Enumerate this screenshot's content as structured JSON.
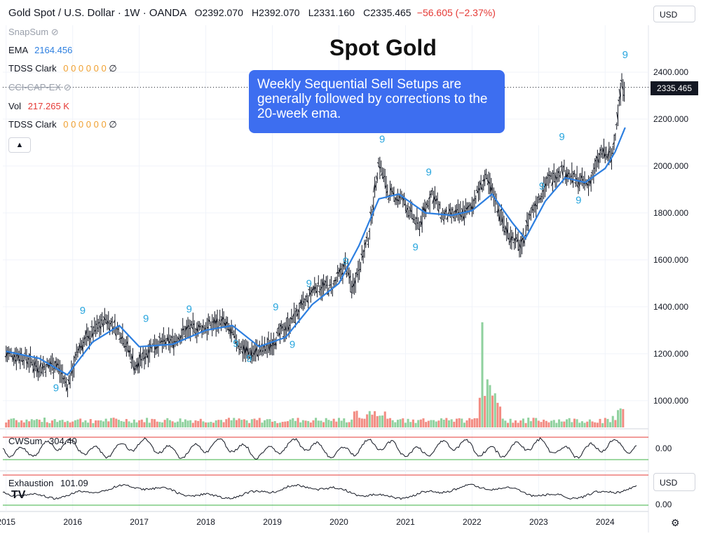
{
  "header": {
    "symbol": "Gold Spot / U.S. Dollar · 1W · OANDA",
    "open": "O2392.070",
    "high": "H2392.070",
    "low": "L2331.160",
    "close": "C2335.465",
    "change": "−56.605 (−2.37%)"
  },
  "indicators": {
    "snapsum": "SnapSum",
    "ema_label": "EMA",
    "ema_value": "2164.456",
    "tdss1_label": "TDSS Clark",
    "tdss_values": "0 0 0 0 0 0",
    "tdss_slash": "∅",
    "cci_label": "CCI-CAP-EX",
    "vol_label": "Vol",
    "vol_value": "217.265 K",
    "tdss2_label": "TDSS Clark",
    "cwsum_label": "CWSum",
    "cwsum_value": "304.40",
    "exhaustion_label": "Exhaustion",
    "exhaustion_value": "101.09"
  },
  "currency": "USD",
  "currency2": "USD",
  "title": "Spot Gold",
  "note": "Weekly Sequential Sell Setups are generally followed by corrections to the 20-week ema.",
  "last_price_tag": "2335.465",
  "cw_axis_label": "0.00",
  "ex_axis_label": "0.00",
  "colors": {
    "ema": "#2d7fe0",
    "bars": "#131722",
    "setup": "#29a6de",
    "vol_up": "#8fd19e",
    "vol_down": "#f28b82",
    "red_line": "#e53935",
    "green_line": "#3cb043"
  },
  "chart_data": {
    "type": "line",
    "series": [
      {
        "name": "Gold Spot / U.S. Dollar",
        "x": [
          2015.0,
          2015.25,
          2015.5,
          2015.75,
          2015.92,
          2016.1,
          2016.5,
          2016.75,
          2016.95,
          2017.2,
          2017.5,
          2017.7,
          2017.95,
          2018.25,
          2018.5,
          2018.65,
          2018.9,
          2019.2,
          2019.5,
          2019.65,
          2019.9,
          2020.1,
          2020.2,
          2020.45,
          2020.6,
          2020.75,
          2020.95,
          2021.2,
          2021.4,
          2021.55,
          2021.75,
          2021.95,
          2022.2,
          2022.35,
          2022.5,
          2022.75,
          2022.85,
          2023.1,
          2023.35,
          2023.5,
          2023.75,
          2023.95,
          2024.1,
          2024.25,
          2024.3
        ],
        "y": [
          1200,
          1190,
          1140,
          1160,
          1060,
          1230,
          1350,
          1280,
          1140,
          1240,
          1250,
          1300,
          1310,
          1340,
          1240,
          1200,
          1220,
          1310,
          1420,
          1490,
          1480,
          1580,
          1480,
          1700,
          2020,
          1880,
          1860,
          1740,
          1890,
          1790,
          1790,
          1810,
          1950,
          1860,
          1730,
          1650,
          1780,
          1920,
          1990,
          1950,
          1920,
          2060,
          2030,
          2350,
          2335
        ]
      },
      {
        "name": "EMA",
        "x": [
          2015.0,
          2015.5,
          2015.92,
          2016.3,
          2016.7,
          2017.0,
          2017.5,
          2018.0,
          2018.4,
          2018.8,
          2019.2,
          2019.6,
          2020.0,
          2020.3,
          2020.6,
          2020.9,
          2021.3,
          2021.7,
          2022.0,
          2022.3,
          2022.6,
          2022.8,
          2023.1,
          2023.4,
          2023.7,
          2024.0,
          2024.15,
          2024.3
        ],
        "y": [
          1210,
          1180,
          1110,
          1250,
          1320,
          1230,
          1240,
          1300,
          1320,
          1230,
          1270,
          1410,
          1500,
          1660,
          1860,
          1880,
          1800,
          1790,
          1810,
          1880,
          1760,
          1690,
          1850,
          1950,
          1930,
          1990,
          2060,
          2164
        ]
      }
    ],
    "setup_counts": [
      {
        "x": 2015.75,
        "y": 1040,
        "label": "9"
      },
      {
        "x": 2016.15,
        "y": 1370,
        "label": "9"
      },
      {
        "x": 2017.1,
        "y": 1335,
        "label": "9"
      },
      {
        "x": 2017.75,
        "y": 1375,
        "label": "9"
      },
      {
        "x": 2018.45,
        "y": 1230,
        "label": "9"
      },
      {
        "x": 2018.65,
        "y": 1165,
        "label": "9"
      },
      {
        "x": 2019.05,
        "y": 1385,
        "label": "9"
      },
      {
        "x": 2019.3,
        "y": 1225,
        "label": "9"
      },
      {
        "x": 2019.55,
        "y": 1485,
        "label": "9"
      },
      {
        "x": 2020.1,
        "y": 1580,
        "label": "9"
      },
      {
        "x": 2020.65,
        "y": 2100,
        "label": "9"
      },
      {
        "x": 2021.15,
        "y": 1640,
        "label": "9"
      },
      {
        "x": 2021.35,
        "y": 1960,
        "label": "9"
      },
      {
        "x": 2023.35,
        "y": 2110,
        "label": "9"
      },
      {
        "x": 2023.05,
        "y": 1900,
        "label": "9"
      },
      {
        "x": 2023.6,
        "y": 1840,
        "label": "9"
      },
      {
        "x": 2024.3,
        "y": 2460,
        "label": "9"
      }
    ],
    "xlim": [
      2014.95,
      2024.65
    ],
    "ylim": [
      880,
      2600
    ],
    "y_ticks": [
      "2400.000",
      "2200.000",
      "2000.000",
      "1800.000",
      "1600.000",
      "1400.000",
      "1200.000",
      "1000.000"
    ],
    "x_ticks": [
      "2015",
      "2016",
      "2017",
      "2018",
      "2019",
      "2020",
      "2021",
      "2022",
      "2023",
      "2024"
    ]
  }
}
